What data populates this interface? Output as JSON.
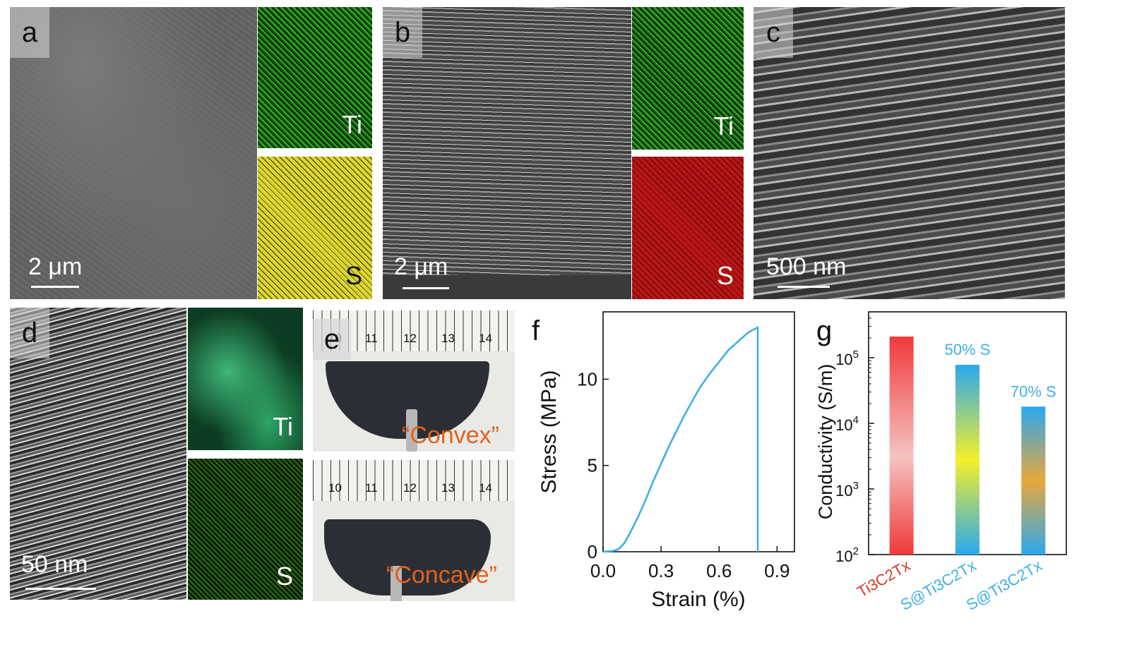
{
  "panels": {
    "a": {
      "letter": "a",
      "scale": "2 μm",
      "map_labels": [
        "Ti",
        "S"
      ]
    },
    "b": {
      "letter": "b",
      "scale": "2 μm",
      "map_labels": [
        "Ti",
        "S"
      ]
    },
    "c": {
      "letter": "c",
      "scale": "500 nm"
    },
    "d": {
      "letter": "d",
      "scale": "50 nm",
      "map_labels": [
        "Ti",
        "S"
      ]
    },
    "e": {
      "letter": "e",
      "ruler_numbers": [
        "10",
        "11",
        "12",
        "13",
        "14"
      ],
      "top_label": "“Convex”",
      "bottom_label": "“Concave”"
    },
    "f": {
      "letter": "f"
    },
    "g": {
      "letter": "g"
    }
  },
  "colors": {
    "curve": "#3fb0e6",
    "bar_pure_top": "#ef3b3b",
    "series_label": "#3fb0e6",
    "pure_label": "#d03a2a",
    "photo_label": "#e2611c"
  },
  "chart_data": [
    {
      "type": "line",
      "panel": "f",
      "xlabel": "Strain (%)",
      "ylabel": "Stress (MPa)",
      "xlim": [
        0.0,
        0.99
      ],
      "ylim": [
        0,
        13.9
      ],
      "xticks": [
        "0.0",
        "0.3",
        "0.6",
        "0.9"
      ],
      "yticks": [
        "0",
        "5",
        "10"
      ],
      "series": [
        {
          "points": [
            [
              0.0,
              0
            ],
            [
              0.05,
              0.05
            ],
            [
              0.08,
              0.15
            ],
            [
              0.11,
              0.5
            ],
            [
              0.14,
              1.1
            ],
            [
              0.18,
              2.0
            ],
            [
              0.22,
              3.0
            ],
            [
              0.26,
              4.1
            ],
            [
              0.3,
              5.1
            ],
            [
              0.34,
              6.1
            ],
            [
              0.38,
              7.0
            ],
            [
              0.42,
              7.9
            ],
            [
              0.46,
              8.7
            ],
            [
              0.5,
              9.5
            ],
            [
              0.55,
              10.3
            ],
            [
              0.6,
              11.0
            ],
            [
              0.65,
              11.7
            ],
            [
              0.7,
              12.2
            ],
            [
              0.75,
              12.7
            ],
            [
              0.8,
              13.0
            ],
            [
              0.8,
              0
            ]
          ]
        }
      ]
    },
    {
      "type": "bar",
      "panel": "g",
      "ylabel": "Conductivity (S/m)",
      "yscale": "log",
      "ylim": [
        100,
        500000
      ],
      "yticks": [
        {
          "base": "10",
          "exp": "2"
        },
        {
          "base": "10",
          "exp": "3"
        },
        {
          "base": "10",
          "exp": "4"
        },
        {
          "base": "10",
          "exp": "5"
        }
      ],
      "categories": [
        "Ti3C2Tx",
        "S@Ti3C2Tx",
        "S@Ti3C2Tx"
      ],
      "values": [
        210000,
        78000,
        18000
      ],
      "annotations": [
        "",
        "50% S",
        "70% S"
      ]
    }
  ]
}
